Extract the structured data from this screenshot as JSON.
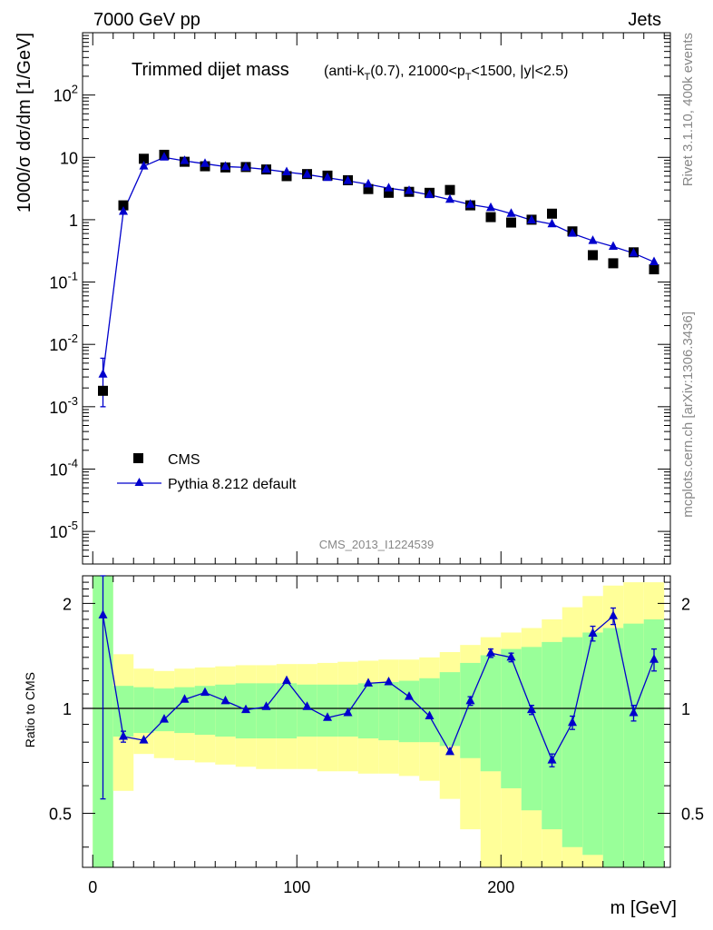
{
  "header": {
    "left": "7000 GeV pp",
    "right": "Jets"
  },
  "side_text": {
    "rivet": "Rivet 3.1.10,  400k events",
    "mcplots": "mcplots.cern.ch [arXiv:1306.3436]"
  },
  "analysis_label": "CMS_2013_I1224539",
  "chart_data": [
    {
      "type": "scatter",
      "title": "Trimmed dijet mass",
      "subtitle": "(anti-kT(0.7), 21000<pT<1500, |y|<2.5)",
      "ylabel": "1000/σ dσ/dm [1/GeV]",
      "yscale": "log",
      "ylim": [
        3e-06,
        1000
      ],
      "xlim": [
        -5,
        283
      ],
      "y_tick_labels": [
        "10^-5",
        "10^-4",
        "10^-3",
        "10^-2",
        "10^-1",
        "1",
        "10",
        "10^2"
      ],
      "legend": {
        "position": "bottom-left",
        "entries": [
          "CMS",
          "Pythia 8.212 default"
        ]
      },
      "x": [
        5,
        15,
        25,
        35,
        45,
        55,
        65,
        75,
        85,
        95,
        105,
        115,
        125,
        135,
        145,
        155,
        165,
        175,
        185,
        195,
        205,
        215,
        225,
        235,
        245,
        255,
        265,
        275
      ],
      "series": [
        {
          "name": "CMS",
          "marker": "square",
          "color": "#000000",
          "values": [
            0.0018,
            1.7,
            9.5,
            11,
            8.5,
            7.2,
            6.9,
            7.0,
            6.4,
            5.0,
            5.4,
            5.1,
            4.3,
            3.1,
            2.7,
            2.8,
            2.7,
            3.0,
            1.7,
            1.1,
            0.9,
            1.0,
            1.25,
            0.65,
            0.27,
            0.2,
            0.3,
            0.16
          ]
        },
        {
          "name": "Pythia 8.212 default",
          "marker": "triangle",
          "color": "#0000cc",
          "values": [
            0.0033,
            1.35,
            7.2,
            10.0,
            8.8,
            7.9,
            7.1,
            6.9,
            6.4,
            5.8,
            5.3,
            4.7,
            4.2,
            3.7,
            3.2,
            2.9,
            2.5,
            2.1,
            1.75,
            1.55,
            1.25,
            0.98,
            0.85,
            0.6,
            0.46,
            0.37,
            0.29,
            0.21
          ],
          "err_low": [
            0.0023,
            0,
            0,
            0,
            0,
            0,
            0,
            0,
            0,
            0,
            0,
            0,
            0,
            0,
            0,
            0,
            0,
            0,
            0,
            0,
            0,
            0,
            0,
            0,
            0,
            0,
            0,
            0
          ],
          "err_high": [
            0.0027,
            0,
            0,
            0,
            0,
            0,
            0,
            0,
            0,
            0,
            0,
            0,
            0,
            0,
            0,
            0,
            0,
            0,
            0,
            0,
            0,
            0,
            0,
            0,
            0,
            0,
            0,
            0
          ]
        }
      ]
    },
    {
      "type": "line",
      "ylabel": "Ratio to CMS",
      "xlabel": "m [GeV]",
      "yscale": "log",
      "ylim": [
        0.35,
        2.4
      ],
      "xlim": [
        -5,
        283
      ],
      "x_tick_labels": [
        "0",
        "100",
        "200"
      ],
      "y_tick_labels": [
        "0.5",
        "1",
        "2"
      ],
      "band_edges": [
        0,
        10,
        20,
        30,
        40,
        50,
        60,
        70,
        80,
        90,
        100,
        110,
        120,
        130,
        140,
        150,
        160,
        170,
        180,
        190,
        200,
        210,
        220,
        230,
        240,
        250,
        260,
        270,
        280
      ],
      "bands": {
        "green_low": [
          0.3,
          0.83,
          0.85,
          0.86,
          0.85,
          0.84,
          0.83,
          0.82,
          0.82,
          0.82,
          0.83,
          0.83,
          0.83,
          0.82,
          0.81,
          0.8,
          0.8,
          0.78,
          0.72,
          0.66,
          0.59,
          0.51,
          0.45,
          0.4,
          0.38,
          0.35,
          0.32,
          0.3
        ],
        "green_high": [
          2.4,
          1.16,
          1.15,
          1.14,
          1.15,
          1.16,
          1.17,
          1.18,
          1.18,
          1.18,
          1.17,
          1.17,
          1.17,
          1.18,
          1.19,
          1.2,
          1.22,
          1.27,
          1.35,
          1.42,
          1.48,
          1.5,
          1.55,
          1.6,
          1.65,
          1.7,
          1.75,
          1.8
        ],
        "yellow_low": [
          0.3,
          0.58,
          0.74,
          0.72,
          0.71,
          0.7,
          0.69,
          0.68,
          0.67,
          0.67,
          0.67,
          0.66,
          0.66,
          0.65,
          0.65,
          0.64,
          0.62,
          0.55,
          0.45,
          0.3,
          0.25,
          0.25,
          0.2,
          0.15,
          0.15,
          0.15,
          0.15,
          0.15
        ],
        "yellow_high": [
          2.4,
          1.43,
          1.3,
          1.28,
          1.3,
          1.31,
          1.32,
          1.33,
          1.33,
          1.34,
          1.34,
          1.35,
          1.36,
          1.37,
          1.38,
          1.38,
          1.4,
          1.45,
          1.52,
          1.6,
          1.65,
          1.7,
          1.8,
          1.95,
          2.1,
          2.25,
          2.3,
          2.3
        ]
      },
      "series": [
        {
          "name": "Pythia 8.212 default",
          "marker": "triangle",
          "color": "#0000cc",
          "x": [
            5,
            15,
            25,
            35,
            45,
            55,
            65,
            75,
            85,
            95,
            105,
            115,
            125,
            135,
            145,
            155,
            165,
            175,
            185,
            195,
            205,
            215,
            225,
            235,
            245,
            255,
            265,
            275
          ],
          "values": [
            1.85,
            0.83,
            0.81,
            0.93,
            1.06,
            1.11,
            1.05,
            0.99,
            1.01,
            1.2,
            1.01,
            0.94,
            0.97,
            1.18,
            1.19,
            1.08,
            0.95,
            0.75,
            1.05,
            1.44,
            1.4,
            0.99,
            0.71,
            0.91,
            1.64,
            1.84,
            0.97,
            1.38
          ],
          "err_low": [
            1.3,
            0.03,
            0,
            0,
            0,
            0,
            0,
            0,
            0,
            0,
            0,
            0,
            0,
            0,
            0,
            0,
            0,
            0,
            0.03,
            0.04,
            0.04,
            0.03,
            0.03,
            0.04,
            0.08,
            0.1,
            0.05,
            0.1
          ],
          "err_high": [
            0.6,
            0.03,
            0,
            0,
            0,
            0,
            0,
            0,
            0,
            0,
            0,
            0,
            0,
            0,
            0,
            0,
            0,
            0,
            0.03,
            0.04,
            0.04,
            0.03,
            0.03,
            0.04,
            0.08,
            0.1,
            0.05,
            0.1
          ]
        }
      ]
    }
  ]
}
